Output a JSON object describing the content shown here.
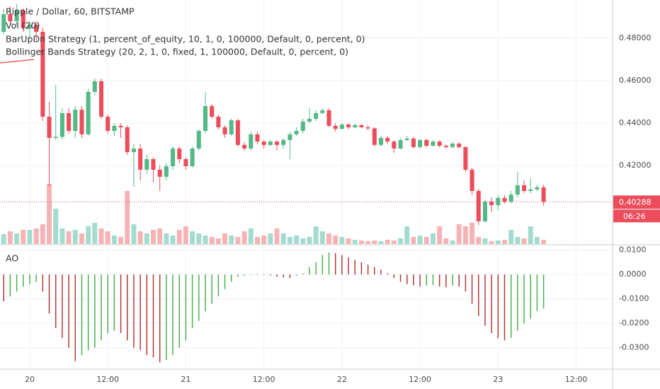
{
  "chart_data": [
    {
      "type": "candlestick",
      "title": "Ripple / Dollar, 60, BITSTAMP",
      "indicators": [
        "Vol (20)",
        "BarUpDn Strategy (1, percent_of_equity, 10, 1, 0, 100000, Default, 0, percent, 0)",
        "Bollinger Bands Strategy (20, 2, 1, 0, fixed, 1, 100000, Default, 0, percent, 0)"
      ],
      "countdown": "06:26",
      "x": [
        -4,
        -3,
        -2,
        -1,
        0,
        1,
        2,
        3,
        4,
        5,
        6,
        7,
        8,
        9,
        10,
        11,
        12,
        13,
        14,
        15,
        16,
        17,
        18,
        19,
        20,
        21,
        22,
        23,
        24,
        25,
        26,
        27,
        28,
        29,
        30,
        31,
        32,
        33,
        34,
        35,
        36,
        37,
        38,
        39,
        40,
        41,
        42,
        43,
        44,
        45,
        46,
        47,
        48,
        49,
        50,
        51,
        52,
        53,
        54,
        55,
        56,
        57,
        58,
        59,
        60,
        61,
        62,
        63,
        64,
        65,
        66,
        67,
        68,
        69,
        70,
        71,
        72,
        73,
        74,
        75,
        76,
        77,
        78,
        79
      ],
      "open": [
        0.483,
        0.4913,
        0.488,
        0.493,
        0.4847,
        0.4863,
        0.483,
        0.443,
        0.433,
        0.4335,
        0.4447,
        0.4363,
        0.4463,
        0.4347,
        0.4547,
        0.4597,
        0.443,
        0.4363,
        0.4387,
        0.438,
        0.4263,
        0.428,
        0.418,
        0.423,
        0.418,
        0.4147,
        0.4197,
        0.428,
        0.423,
        0.4197,
        0.428,
        0.4363,
        0.448,
        0.443,
        0.438,
        0.4347,
        0.4413,
        0.4297,
        0.428,
        0.4347,
        0.4313,
        0.4297,
        0.4313,
        0.4297,
        0.432,
        0.4347,
        0.4363,
        0.4407,
        0.442,
        0.4447,
        0.446,
        0.4387,
        0.4373,
        0.4393,
        0.438,
        0.439,
        0.438,
        0.4375,
        0.4297,
        0.433,
        0.4313,
        0.428,
        0.432,
        0.4327,
        0.4287,
        0.432,
        0.4293,
        0.4313,
        0.4293,
        0.4287,
        0.4303,
        0.4287,
        0.418,
        0.408,
        0.3937,
        0.403,
        0.4013,
        0.4047,
        0.403,
        0.4063,
        0.4107,
        0.408,
        0.4087,
        0.4097
      ],
      "high": [
        0.494,
        0.495,
        0.496,
        0.494,
        0.488,
        0.488,
        0.485,
        0.45,
        0.458,
        0.447,
        0.447,
        0.448,
        0.448,
        0.456,
        0.461,
        0.461,
        0.444,
        0.44,
        0.44,
        0.439,
        0.43,
        0.43,
        0.425,
        0.424,
        0.42,
        0.421,
        0.429,
        0.429,
        0.424,
        0.429,
        0.437,
        0.4547,
        0.449,
        0.444,
        0.439,
        0.442,
        0.442,
        0.431,
        0.436,
        0.436,
        0.432,
        0.432,
        0.432,
        0.433,
        0.436,
        0.438,
        0.442,
        0.447,
        0.446,
        0.447,
        0.447,
        0.44,
        0.44,
        0.44,
        0.44,
        0.4395,
        0.439,
        0.438,
        0.434,
        0.434,
        0.432,
        0.433,
        0.434,
        0.4335,
        0.4325,
        0.4325,
        0.432,
        0.4318,
        0.43,
        0.431,
        0.431,
        0.429,
        0.419,
        0.409,
        0.404,
        0.405,
        0.406,
        0.406,
        0.408,
        0.417,
        0.413,
        0.414,
        0.411,
        0.411
      ],
      "low": [
        0.482,
        0.487,
        0.486,
        0.483,
        0.48,
        0.479,
        0.441,
        0.41,
        0.432,
        0.432,
        0.435,
        0.433,
        0.433,
        0.434,
        0.453,
        0.442,
        0.435,
        0.434,
        0.433,
        0.425,
        0.41,
        0.413,
        0.416,
        0.412,
        0.408,
        0.413,
        0.418,
        0.421,
        0.418,
        0.419,
        0.427,
        0.435,
        0.442,
        0.437,
        0.433,
        0.434,
        0.429,
        0.427,
        0.427,
        0.43,
        0.428,
        0.429,
        0.427,
        0.428,
        0.423,
        0.434,
        0.435,
        0.44,
        0.441,
        0.444,
        0.438,
        0.436,
        0.437,
        0.437,
        0.4375,
        0.4375,
        0.4365,
        0.429,
        0.429,
        0.43,
        0.426,
        0.4275,
        0.4315,
        0.428,
        0.428,
        0.4285,
        0.429,
        0.4285,
        0.428,
        0.428,
        0.428,
        0.417,
        0.406,
        0.392,
        0.393,
        0.398,
        0.399,
        0.402,
        0.402,
        0.405,
        0.407,
        0.407,
        0.408,
        0.401
      ],
      "close": [
        0.4913,
        0.488,
        0.493,
        0.4847,
        0.4863,
        0.483,
        0.443,
        0.433,
        0.4335,
        0.4447,
        0.4363,
        0.4463,
        0.4347,
        0.4547,
        0.4597,
        0.443,
        0.4363,
        0.4387,
        0.438,
        0.4263,
        0.428,
        0.418,
        0.423,
        0.418,
        0.4147,
        0.4197,
        0.428,
        0.423,
        0.4197,
        0.428,
        0.4363,
        0.448,
        0.443,
        0.438,
        0.4347,
        0.4413,
        0.4297,
        0.428,
        0.4347,
        0.4313,
        0.4297,
        0.4313,
        0.4297,
        0.432,
        0.4347,
        0.4363,
        0.4407,
        0.442,
        0.4447,
        0.446,
        0.4387,
        0.4373,
        0.4393,
        0.438,
        0.439,
        0.438,
        0.4375,
        0.4297,
        0.433,
        0.4313,
        0.428,
        0.432,
        0.4327,
        0.4287,
        0.432,
        0.4293,
        0.4313,
        0.4293,
        0.4287,
        0.4303,
        0.4287,
        0.418,
        0.408,
        0.3937,
        0.403,
        0.4013,
        0.4047,
        0.403,
        0.4063,
        0.4107,
        0.408,
        0.4087,
        0.4097,
        0.40288
      ],
      "volume": [
        14,
        18,
        15,
        20,
        20,
        22,
        28,
        85,
        50,
        22,
        18,
        20,
        15,
        25,
        30,
        22,
        18,
        12,
        10,
        75,
        28,
        18,
        15,
        20,
        22,
        15,
        12,
        20,
        25,
        18,
        15,
        12,
        10,
        8,
        15,
        12,
        10,
        18,
        22,
        10,
        12,
        15,
        22,
        15,
        10,
        12,
        8,
        10,
        25,
        18,
        15,
        12,
        10,
        8,
        6,
        5,
        4,
        5,
        4,
        6,
        5,
        8,
        25,
        10,
        12,
        10,
        15,
        25,
        8,
        5,
        28,
        25,
        30,
        10,
        8,
        4,
        5,
        6,
        20,
        10,
        8,
        25,
        10,
        6
      ],
      "up_color": "#53b987",
      "down_color": "#eb4d5c",
      "volume_up_color": "#a3dccf",
      "volume_down_color": "#f6b3b6",
      "xlim": [
        -4.57,
        89.6
      ],
      "xticks": [
        {
          "value": 0,
          "label": "20"
        },
        {
          "value": 12,
          "label": "12:00"
        },
        {
          "value": 24,
          "label": "21"
        },
        {
          "value": 36,
          "label": "12:00"
        },
        {
          "value": 48,
          "label": "22"
        },
        {
          "value": 60,
          "label": "12:00"
        },
        {
          "value": 72,
          "label": "23"
        },
        {
          "value": 84,
          "label": "12:00"
        }
      ],
      "ylim": [
        0.383,
        0.498
      ],
      "yticks": [
        {
          "value": 0.42,
          "label": "0.42000"
        },
        {
          "value": 0.44,
          "label": "0.44000"
        },
        {
          "value": 0.46,
          "label": "0.46000"
        },
        {
          "value": 0.48,
          "label": "0.48000"
        }
      ],
      "grid": true
    },
    {
      "type": "histogram",
      "title": "AO",
      "values": [
        -0.011,
        -0.009,
        -0.007,
        -0.005,
        -0.004,
        -0.003,
        -0.007,
        -0.016,
        -0.022,
        -0.026,
        -0.03,
        -0.0355,
        -0.033,
        -0.031,
        -0.03,
        -0.027,
        -0.024,
        -0.023,
        -0.024,
        -0.027,
        -0.03,
        -0.031,
        -0.033,
        -0.034,
        -0.036,
        -0.035,
        -0.033,
        -0.03,
        -0.027,
        -0.022,
        -0.019,
        -0.015,
        -0.012,
        -0.009,
        -0.006,
        -0.003,
        -0.001,
        -0.0005,
        0.0002,
        0.0003,
        -0.0002,
        -0.0004,
        -0.001,
        -0.0012,
        -0.0015,
        -0.0005,
        0.0005,
        0.003,
        0.005,
        0.008,
        0.009,
        0.0088,
        0.008,
        0.007,
        0.006,
        0.005,
        0.004,
        0.003,
        0.002,
        0.0005,
        -0.0015,
        -0.003,
        -0.004,
        -0.0045,
        -0.005,
        -0.0045,
        -0.0044,
        -0.005,
        -0.0052,
        -0.0045,
        -0.005,
        -0.007,
        -0.012,
        -0.017,
        -0.021,
        -0.024,
        -0.026,
        -0.027,
        -0.026,
        -0.023,
        -0.02,
        -0.018,
        -0.015,
        -0.014
      ],
      "up_color": "#4caf50",
      "down_color": "#b03a3a",
      "ylim": [
        -0.0388,
        0.0119
      ],
      "yticks": [
        {
          "value": 0.01,
          "label": "0.0100"
        },
        {
          "value": 0,
          "label": "0.0000"
        },
        {
          "value": -0.01,
          "label": "-0.0100"
        },
        {
          "value": -0.02,
          "label": "-0.0200"
        },
        {
          "value": -0.03,
          "label": "-0.0300"
        }
      ],
      "grid": true
    }
  ]
}
